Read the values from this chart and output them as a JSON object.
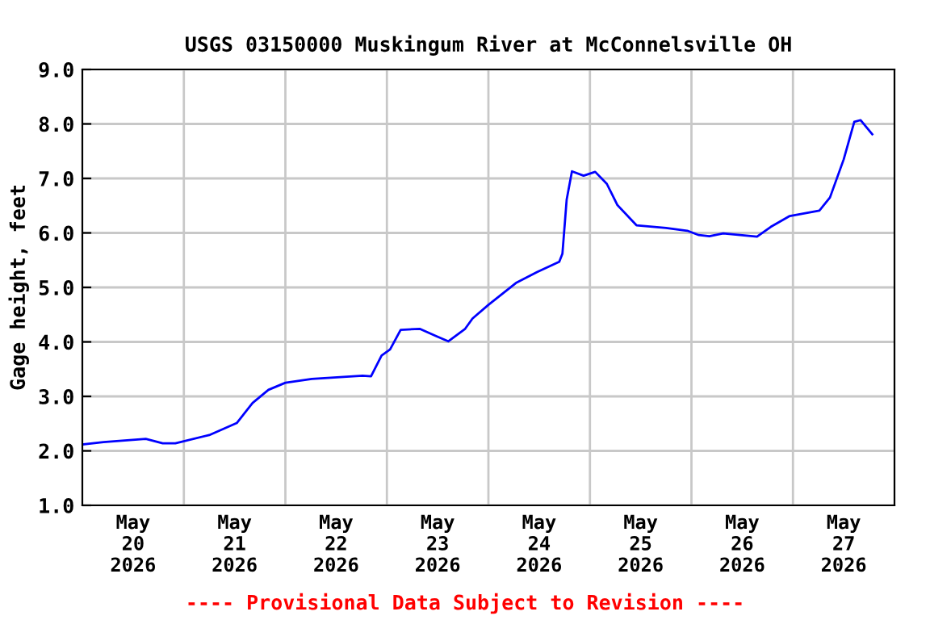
{
  "chart_data": {
    "type": "line",
    "title": "USGS 03150000 Muskingum River at McConnelsville OH",
    "ylabel": "Gage height, feet",
    "annotations": [
      "---- Provisional Data Subject to Revision ----"
    ],
    "x": [
      "2026-05-20T00:15",
      "2026-05-20T05:00",
      "2026-05-20T15:00",
      "2026-05-20T19:00",
      "2026-05-20T22:00",
      "2026-05-21T06:00",
      "2026-05-21T12:30",
      "2026-05-21T16:15",
      "2026-05-21T20:00",
      "2026-05-22T00:00",
      "2026-05-22T06:15",
      "2026-05-22T18:15",
      "2026-05-22T20:15",
      "2026-05-22T22:45",
      "2026-05-23T00:45",
      "2026-05-23T03:15",
      "2026-05-23T07:45",
      "2026-05-23T11:30",
      "2026-05-23T14:30",
      "2026-05-23T18:30",
      "2026-05-23T20:15",
      "2026-05-24T00:00",
      "2026-05-24T06:30",
      "2026-05-24T11:30",
      "2026-05-24T16:45",
      "2026-05-24T17:30",
      "2026-05-24T18:30",
      "2026-05-24T19:45",
      "2026-05-24T22:30",
      "2026-05-25T01:15",
      "2026-05-25T04:00",
      "2026-05-25T06:30",
      "2026-05-25T11:00",
      "2026-05-25T18:00",
      "2026-05-25T23:00",
      "2026-05-26T01:45",
      "2026-05-26T04:15",
      "2026-05-26T07:30",
      "2026-05-26T15:30",
      "2026-05-26T18:45",
      "2026-05-26T23:15",
      "2026-05-27T06:15",
      "2026-05-27T08:45",
      "2026-05-27T12:00",
      "2026-05-27T14:30",
      "2026-05-27T16:00",
      "2026-05-27T18:45"
    ],
    "series": [
      {
        "color": "#0000ff",
        "values": [
          2.12,
          2.16,
          2.22,
          2.14,
          2.14,
          2.29,
          2.51,
          2.88,
          3.12,
          3.25,
          3.32,
          3.38,
          3.37,
          3.75,
          3.86,
          4.22,
          4.24,
          4.11,
          4.01,
          4.24,
          4.43,
          4.68,
          5.08,
          5.28,
          5.47,
          5.62,
          6.61,
          7.13,
          7.05,
          7.12,
          6.9,
          6.51,
          6.14,
          6.09,
          6.04,
          5.96,
          5.94,
          5.99,
          5.93,
          6.11,
          6.31,
          6.41,
          6.65,
          7.35,
          8.04,
          8.07,
          7.81
        ]
      }
    ],
    "xlim": [
      "2026-05-20T00:00",
      "2026-05-28T00:00"
    ],
    "xticks": [
      {
        "value": "2026-05-20T12:00",
        "label": "May\n20\n2026"
      },
      {
        "value": "2026-05-21T00:00",
        "label": null
      },
      {
        "value": "2026-05-21T12:00",
        "label": "May\n21\n2026"
      },
      {
        "value": "2026-05-22T00:00",
        "label": null
      },
      {
        "value": "2026-05-22T12:00",
        "label": "May\n22\n2026"
      },
      {
        "value": "2026-05-23T00:00",
        "label": null
      },
      {
        "value": "2026-05-23T12:00",
        "label": "May\n23\n2026"
      },
      {
        "value": "2026-05-24T00:00",
        "label": null
      },
      {
        "value": "2026-05-24T12:00",
        "label": "May\n24\n2026"
      },
      {
        "value": "2026-05-25T00:00",
        "label": null
      },
      {
        "value": "2026-05-25T12:00",
        "label": "May\n25\n2026"
      },
      {
        "value": "2026-05-26T00:00",
        "label": null
      },
      {
        "value": "2026-05-26T12:00",
        "label": "May\n26\n2026"
      },
      {
        "value": "2026-05-27T00:00",
        "label": null
      },
      {
        "value": "2026-05-27T12:00",
        "label": "May\n27\n2026"
      }
    ],
    "ylim": [
      1.0,
      9.0
    ],
    "yticks": [
      {
        "value": 1,
        "label": "1.0"
      },
      {
        "value": 2,
        "label": "2.0"
      },
      {
        "value": 3,
        "label": "3.0"
      },
      {
        "value": 4,
        "label": "4.0"
      },
      {
        "value": 5,
        "label": "5.0"
      },
      {
        "value": 6,
        "label": "6.0"
      },
      {
        "value": 7,
        "label": "7.0"
      },
      {
        "value": 8,
        "label": "8.0"
      },
      {
        "value": 9,
        "label": "9.0"
      }
    ],
    "grid": true,
    "legend": false,
    "marker": "none",
    "line_style": "solid"
  }
}
